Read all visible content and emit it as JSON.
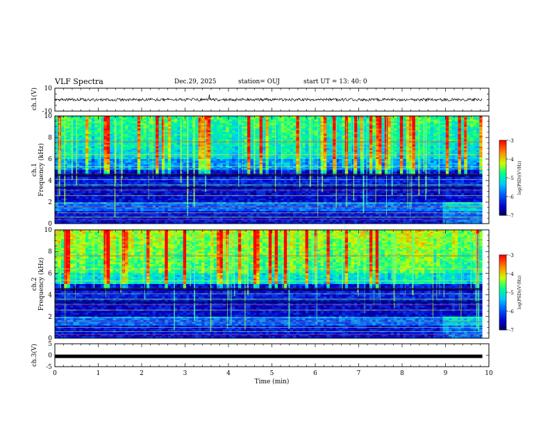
{
  "header": {
    "title": "VLF Spectra",
    "date": "Dec.29, 2025",
    "station": "station= OUJ",
    "start": "start  UT  =   13: 40: 0"
  },
  "chart_data": [
    {
      "type": "line",
      "title": "ch.1(V)",
      "ylabel": "ch.1(V)",
      "ylim": [
        -10,
        10
      ],
      "yticks": [
        "10",
        "-10"
      ],
      "xlim": [
        0,
        10
      ],
      "series": [
        {
          "name": "ch.1 waveform",
          "baseline": 0,
          "noise_amplitude": 1.2
        }
      ]
    },
    {
      "type": "heatmap",
      "title": "ch.1 spectrogram",
      "ylabel_line1": "ch.1",
      "ylabel_line2": "Frequency (kHz)",
      "ylim": [
        0,
        10
      ],
      "yticks": [
        "0",
        "2",
        "4",
        "6",
        "8",
        "10"
      ],
      "xlim": [
        0,
        10
      ],
      "colorbar": {
        "label": "log(PSD)(V²/Hz)",
        "ticks": [
          "-3",
          "-4",
          "-5",
          "-6",
          "-7"
        ],
        "range": [
          -7,
          -3
        ]
      }
    },
    {
      "type": "heatmap",
      "title": "ch.2 spectrogram",
      "ylabel_line1": "ch.2",
      "ylabel_line2": "Frequency (kHz)",
      "ylim": [
        0,
        10
      ],
      "yticks": [
        "0",
        "2",
        "4",
        "6",
        "8",
        "10"
      ],
      "xlim": [
        0,
        10
      ],
      "colorbar": {
        "label": "log(PSD)(V²/Hz)",
        "ticks": [
          "-3",
          "-4",
          "-5",
          "-6",
          "-7"
        ],
        "range": [
          -7,
          -3
        ]
      }
    },
    {
      "type": "line",
      "title": "ch.3(V)",
      "ylabel": "ch.3(V)",
      "ylim": [
        -5,
        5
      ],
      "yticks": [
        "5",
        "0",
        "-5"
      ],
      "xlim": [
        0,
        9.85
      ],
      "series": [
        {
          "name": "ch.3 waveform",
          "baseline": -0.5
        }
      ]
    }
  ],
  "xaxis": {
    "label": "Time  (min)",
    "ticks": [
      "0",
      "1",
      "2",
      "3",
      "4",
      "5",
      "6",
      "7",
      "8",
      "9",
      "10"
    ]
  },
  "colors": {
    "low": "#000060",
    "mid": "#00ff80",
    "high": "#ff0000"
  }
}
